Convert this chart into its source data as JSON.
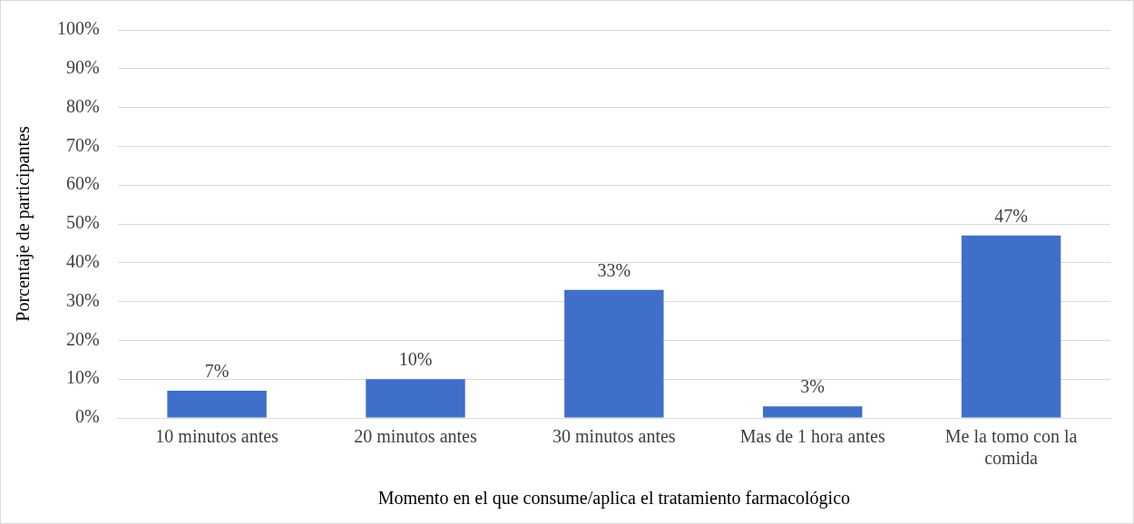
{
  "chart_data": {
    "type": "bar",
    "xlabel": "Momento en el que consume/aplica el tratamiento farmacológico",
    "ylabel": "Porcentaje de participantes",
    "categories": [
      "10 minutos antes",
      "20 minutos antes",
      "30 minutos antes",
      "Mas de 1 hora antes",
      "Me la tomo con la comida"
    ],
    "values": [
      7,
      10,
      33,
      3,
      47
    ],
    "value_labels": [
      "7%",
      "10%",
      "33%",
      "3%",
      "47%"
    ],
    "color": "#3f6fca",
    "ylim": [
      0,
      100
    ],
    "yticks": [
      {
        "value": 0,
        "label": "0%"
      },
      {
        "value": 10,
        "label": "10%"
      },
      {
        "value": 20,
        "label": "20%"
      },
      {
        "value": 30,
        "label": "30%"
      },
      {
        "value": 40,
        "label": "40%"
      },
      {
        "value": 50,
        "label": "50%"
      },
      {
        "value": 60,
        "label": "60%"
      },
      {
        "value": 70,
        "label": "70%"
      },
      {
        "value": 80,
        "label": "80%"
      },
      {
        "value": 90,
        "label": "90%"
      },
      {
        "value": 100,
        "label": "100%"
      }
    ],
    "grid": "y",
    "legend": false
  }
}
